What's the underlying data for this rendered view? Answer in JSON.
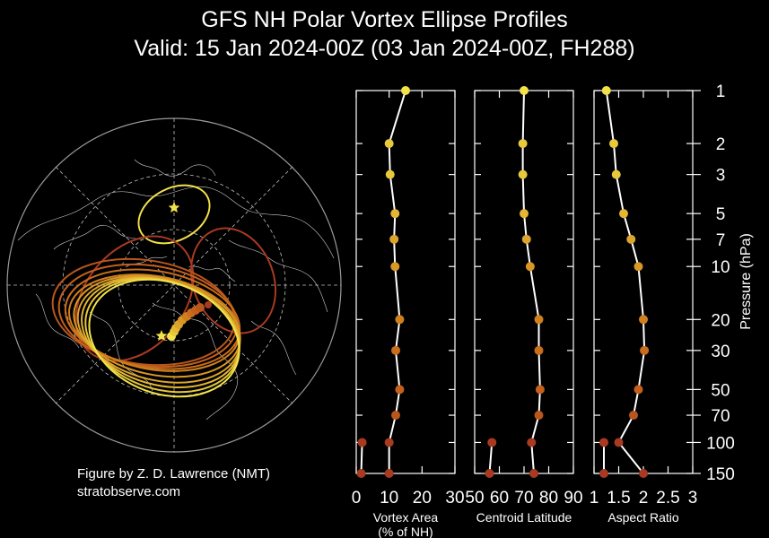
{
  "title": "GFS NH Polar Vortex Ellipse Profiles",
  "subtitle": "Valid: 15 Jan 2024-00Z  (03 Jan 2024-00Z, FH288)",
  "credit": {
    "line1": "Figure by Z. D. Lawrence (NMT)",
    "line2": "stratobserve.com"
  },
  "colors": {
    "background": "#000000",
    "upper_levels": "#f2e24a",
    "mid_levels": "#d88b1c",
    "lower_levels": "#b8561c",
    "lowest_levels": "#a83a22",
    "profile_line": "#ffffff"
  },
  "map": {
    "type": "north-polar-stereographic",
    "description_items": [
      "ellipse outlines per pressure level",
      "centroid markers",
      "star markers"
    ]
  },
  "chart_data": {
    "type": "line",
    "pressure_levels": [
      1,
      2,
      3,
      5,
      7,
      10,
      20,
      30,
      50,
      70,
      100,
      150
    ],
    "y_axis": {
      "label": "Pressure (hPa)",
      "scale": "log",
      "inverted": true,
      "range": [
        1,
        150
      ],
      "ticks": [
        "1",
        "2",
        "3",
        "5",
        "7",
        "10",
        "20",
        "30",
        "50",
        "70",
        "100",
        "150"
      ]
    },
    "panels": [
      {
        "xlabel_line1": "Vortex Area",
        "xlabel_line2": "(% of NH)",
        "xlim": [
          0,
          30
        ],
        "xticks": [
          "0",
          "10",
          "20",
          "30"
        ],
        "series": [
          {
            "values": [
              15,
              10,
              10.3,
              11.8,
              11.5,
              11.8,
              13.2,
              12,
              13.2,
              12,
              10,
              10
            ],
            "colors": [
              "#f2e24a",
              "#e7c93a",
              "#e7c93a",
              "#e4b634",
              "#dca42c",
              "#d99726",
              "#cf7f1c",
              "#c96d1c",
              "#c4601c",
              "#b8561c",
              "#a83a22",
              "#a83a22"
            ]
          },
          {
            "values": [
              null,
              null,
              null,
              null,
              null,
              null,
              null,
              null,
              null,
              null,
              1.8,
              1.5
            ],
            "colors": [
              "",
              "",
              "",
              "",
              "",
              "",
              "",
              "",
              "",
              "",
              "#a83a22",
              "#a83a22"
            ]
          }
        ]
      },
      {
        "xlabel_line1": "Centroid Latitude",
        "xlabel_line2": "",
        "xlim": [
          50,
          90
        ],
        "xticks": [
          "50",
          "60",
          "70",
          "80",
          "90"
        ],
        "series": [
          {
            "values": [
              70,
              69.5,
              69.5,
              70,
              71,
              72.5,
              76,
              76,
              76.5,
              76,
              73,
              74
            ],
            "colors": [
              "#f2e24a",
              "#e7c93a",
              "#e7c93a",
              "#e4b634",
              "#dca42c",
              "#d99726",
              "#cf7f1c",
              "#c96d1c",
              "#c4601c",
              "#b8561c",
              "#a83a22",
              "#a83a22"
            ]
          },
          {
            "values": [
              null,
              null,
              null,
              null,
              null,
              null,
              null,
              null,
              null,
              null,
              57,
              56
            ],
            "colors": [
              "",
              "",
              "",
              "",
              "",
              "",
              "",
              "",
              "",
              "",
              "#a83a22",
              "#a83a22"
            ]
          }
        ]
      },
      {
        "xlabel_line1": "Aspect Ratio",
        "xlabel_line2": "",
        "xlim": [
          1,
          3
        ],
        "xticks": [
          "1",
          "1.5",
          "2",
          "2.5",
          "3"
        ],
        "series": [
          {
            "values": [
              1.25,
              1.4,
              1.45,
              1.6,
              1.75,
              1.9,
              2,
              2.02,
              1.9,
              1.8,
              1.5,
              2
            ],
            "colors": [
              "#f2e24a",
              "#e7c93a",
              "#e7c93a",
              "#e4b634",
              "#dca42c",
              "#d99726",
              "#cf7f1c",
              "#c96d1c",
              "#c4601c",
              "#b8561c",
              "#a83a22",
              "#a83a22"
            ]
          },
          {
            "values": [
              null,
              null,
              null,
              null,
              null,
              null,
              null,
              null,
              null,
              null,
              1.2,
              1.2
            ],
            "colors": [
              "",
              "",
              "",
              "",
              "",
              "",
              "",
              "",
              "",
              "",
              "#a83a22",
              "#a83a22"
            ]
          }
        ]
      }
    ]
  }
}
